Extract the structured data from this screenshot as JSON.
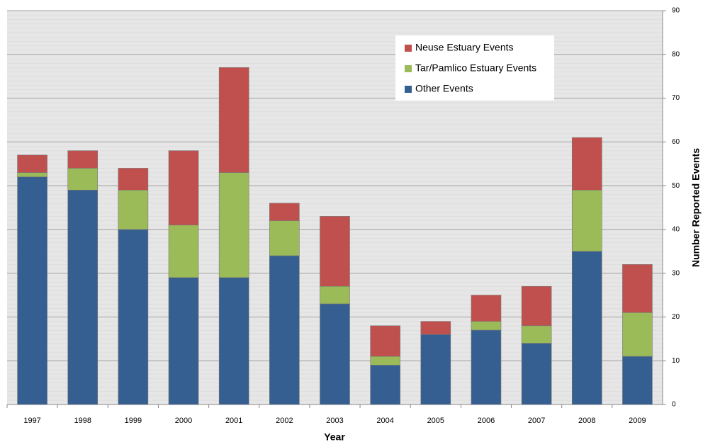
{
  "chart_data": {
    "type": "stacked_bar",
    "x_label": "Year",
    "y_label": "Number Reported Events",
    "categories": [
      "1997",
      "1998",
      "1999",
      "2000",
      "2001",
      "2002",
      "2003",
      "2004",
      "2005",
      "2006",
      "2007",
      "2008",
      "2009"
    ],
    "series": [
      {
        "name": "Other Events",
        "color": "#355e91",
        "values": [
          52,
          49,
          40,
          29,
          29,
          34,
          23,
          9,
          16,
          17,
          14,
          35,
          11
        ]
      },
      {
        "name": "Tar/Pamlico Estuary Events",
        "color": "#9bbb59",
        "values": [
          1,
          5,
          9,
          12,
          24,
          8,
          4,
          2,
          0,
          2,
          4,
          14,
          10
        ]
      },
      {
        "name": "Neuse Estuary Events",
        "color": "#c0504d",
        "values": [
          4,
          4,
          5,
          17,
          24,
          4,
          16,
          7,
          3,
          6,
          9,
          12,
          11
        ]
      }
    ],
    "ylim": [
      0,
      90
    ],
    "yticks": [
      0,
      10,
      20,
      30,
      40,
      50,
      60,
      70,
      80,
      90
    ],
    "grid": true,
    "y_axis_side": "right",
    "legend": "top-right"
  }
}
